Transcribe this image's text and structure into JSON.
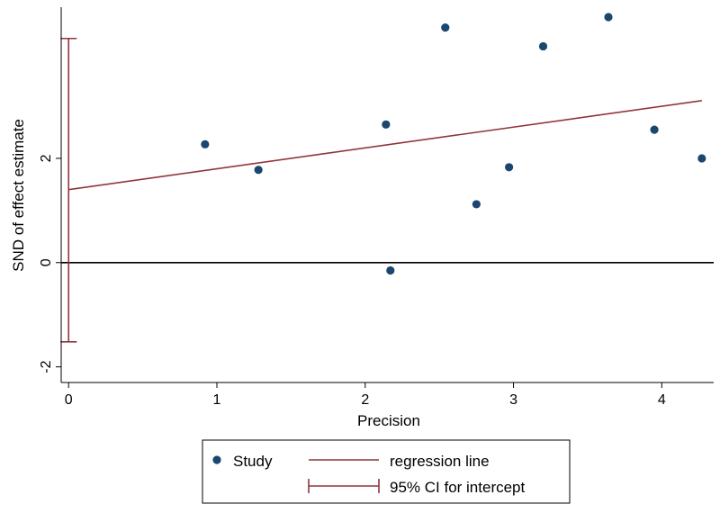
{
  "chart_data": {
    "type": "scatter",
    "title": "",
    "xlabel": "Precision",
    "ylabel": "SND of effect estimate",
    "xlim": [
      -0.05,
      4.35
    ],
    "ylim": [
      -2.3,
      4.9
    ],
    "x_ticks": [
      0,
      1,
      2,
      3,
      4
    ],
    "y_ticks": [
      -2,
      0,
      2
    ],
    "x_tick_labels": [
      "0",
      "1",
      "2",
      "3",
      "4"
    ],
    "y_tick_labels": [
      "-2",
      "0",
      "2"
    ],
    "grid": false,
    "series": [
      {
        "name": "Study",
        "kind": "scatter",
        "color": "#1a476f",
        "points": [
          {
            "x": 0.92,
            "y": 2.27
          },
          {
            "x": 1.28,
            "y": 1.78
          },
          {
            "x": 2.14,
            "y": 2.65
          },
          {
            "x": 2.17,
            "y": -0.15
          },
          {
            "x": 2.54,
            "y": 4.51
          },
          {
            "x": 2.75,
            "y": 1.12
          },
          {
            "x": 2.97,
            "y": 1.83
          },
          {
            "x": 3.2,
            "y": 4.15
          },
          {
            "x": 3.64,
            "y": 4.71
          },
          {
            "x": 3.95,
            "y": 2.55
          },
          {
            "x": 4.27,
            "y": 2.0
          }
        ]
      },
      {
        "name": "regression line",
        "kind": "line",
        "color": "#90353b",
        "intercept": 1.4,
        "slope": 0.4,
        "x_range": [
          0,
          4.27
        ]
      },
      {
        "name": "95% CI for intercept",
        "kind": "errorbar",
        "color": "#90353b",
        "x": 0,
        "low": -1.52,
        "high": 4.3
      }
    ],
    "reference_line": {
      "y": 0,
      "color": "#000000"
    },
    "legend": {
      "position": "bottom",
      "entries": [
        {
          "label": "Study",
          "kind": "marker",
          "color": "#1a476f"
        },
        {
          "label": "regression line",
          "kind": "line",
          "color": "#90353b"
        },
        {
          "label": "95% CI for intercept",
          "kind": "errorbar",
          "color": "#90353b"
        }
      ]
    }
  }
}
